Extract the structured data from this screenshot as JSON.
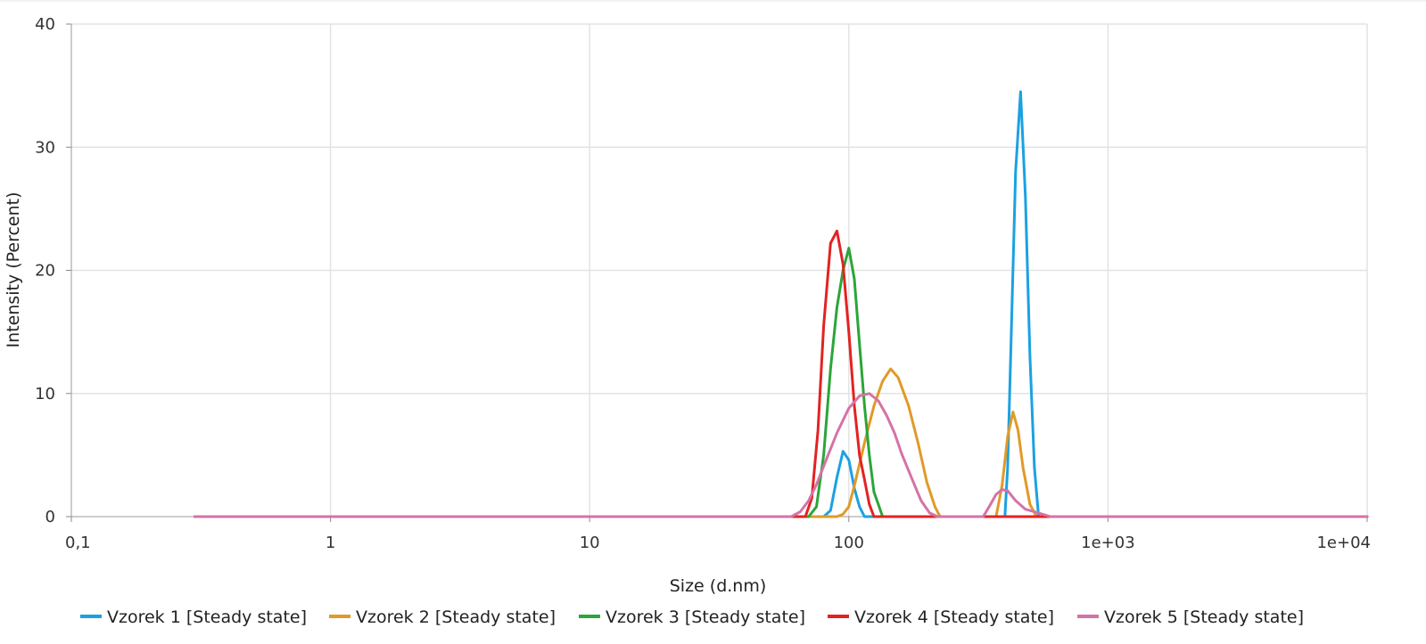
{
  "chart_data": {
    "type": "line",
    "xlabel": "Size (d.nm)",
    "ylabel": "Intensity (Percent)",
    "x_scale": "log",
    "xlim": [
      0.1,
      10000
    ],
    "ylim": [
      0,
      40
    ],
    "grid": true,
    "legend_position": "bottom",
    "x_ticks": [
      {
        "value": 0.1,
        "label": "0,1"
      },
      {
        "value": 1,
        "label": "1"
      },
      {
        "value": 10,
        "label": "10"
      },
      {
        "value": 100,
        "label": "100"
      },
      {
        "value": 1000,
        "label": "1e+03"
      },
      {
        "value": 10000,
        "label": "1e+04"
      }
    ],
    "y_ticks": [
      {
        "value": 0,
        "label": "0"
      },
      {
        "value": 10,
        "label": "10"
      },
      {
        "value": 20,
        "label": "20"
      },
      {
        "value": 30,
        "label": "30"
      },
      {
        "value": 40,
        "label": "40"
      }
    ],
    "series": [
      {
        "name": "Vzorek 1 [Steady state]",
        "color": "#1ba1e2",
        "points": [
          [
            0.3,
            0
          ],
          [
            80,
            0
          ],
          [
            85,
            0.5
          ],
          [
            90,
            3.2
          ],
          [
            95,
            5.3
          ],
          [
            100,
            4.6
          ],
          [
            105,
            2.3
          ],
          [
            110,
            0.8
          ],
          [
            115,
            0
          ],
          [
            400,
            0
          ],
          [
            410,
            4
          ],
          [
            420,
            12
          ],
          [
            440,
            28
          ],
          [
            460,
            34.5
          ],
          [
            480,
            26
          ],
          [
            500,
            13
          ],
          [
            520,
            4
          ],
          [
            540,
            0
          ],
          [
            10000,
            0
          ]
        ]
      },
      {
        "name": "Vzorek 2 [Steady state]",
        "color": "#e09a28",
        "points": [
          [
            0.3,
            0
          ],
          [
            90,
            0
          ],
          [
            95,
            0.2
          ],
          [
            100,
            0.8
          ],
          [
            105,
            2.5
          ],
          [
            115,
            6
          ],
          [
            125,
            9
          ],
          [
            135,
            11
          ],
          [
            145,
            12
          ],
          [
            155,
            11.3
          ],
          [
            170,
            9
          ],
          [
            185,
            6
          ],
          [
            200,
            2.8
          ],
          [
            215,
            0.8
          ],
          [
            225,
            0
          ],
          [
            370,
            0
          ],
          [
            390,
            2.5
          ],
          [
            410,
            6.5
          ],
          [
            430,
            8.5
          ],
          [
            450,
            7
          ],
          [
            470,
            4
          ],
          [
            500,
            1
          ],
          [
            530,
            0
          ],
          [
            10000,
            0
          ]
        ]
      },
      {
        "name": "Vzorek 3 [Steady state]",
        "color": "#2ca53a",
        "points": [
          [
            0.3,
            0
          ],
          [
            70,
            0
          ],
          [
            75,
            0.8
          ],
          [
            80,
            5
          ],
          [
            85,
            12
          ],
          [
            90,
            17
          ],
          [
            95,
            20
          ],
          [
            100,
            21.8
          ],
          [
            105,
            19.3
          ],
          [
            110,
            14
          ],
          [
            115,
            9
          ],
          [
            120,
            5
          ],
          [
            125,
            2
          ],
          [
            130,
            1
          ],
          [
            135,
            0
          ],
          [
            10000,
            0
          ]
        ]
      },
      {
        "name": "Vzorek 4 [Steady state]",
        "color": "#e32222",
        "points": [
          [
            0.3,
            0
          ],
          [
            68,
            0
          ],
          [
            72,
            1.5
          ],
          [
            76,
            7
          ],
          [
            80,
            15.5
          ],
          [
            85,
            22.2
          ],
          [
            90,
            23.2
          ],
          [
            95,
            20.5
          ],
          [
            100,
            15
          ],
          [
            105,
            9
          ],
          [
            110,
            5
          ],
          [
            115,
            3
          ],
          [
            120,
            1
          ],
          [
            125,
            0
          ],
          [
            10000,
            0
          ]
        ]
      },
      {
        "name": "Vzorek 5 [Steady state]",
        "color": "#d473a7",
        "points": [
          [
            0.3,
            0
          ],
          [
            60,
            0
          ],
          [
            65,
            0.4
          ],
          [
            70,
            1.3
          ],
          [
            75,
            2.6
          ],
          [
            80,
            4.1
          ],
          [
            90,
            6.8
          ],
          [
            100,
            8.8
          ],
          [
            110,
            9.8
          ],
          [
            120,
            10
          ],
          [
            130,
            9.4
          ],
          [
            140,
            8.2
          ],
          [
            150,
            6.8
          ],
          [
            160,
            5.1
          ],
          [
            175,
            3.1
          ],
          [
            190,
            1.3
          ],
          [
            205,
            0.3
          ],
          [
            220,
            0
          ],
          [
            330,
            0
          ],
          [
            350,
            0.9
          ],
          [
            370,
            1.8
          ],
          [
            390,
            2.2
          ],
          [
            410,
            2.1
          ],
          [
            440,
            1.3
          ],
          [
            480,
            0.6
          ],
          [
            540,
            0.3
          ],
          [
            600,
            0
          ],
          [
            10000,
            0
          ]
        ]
      }
    ]
  }
}
